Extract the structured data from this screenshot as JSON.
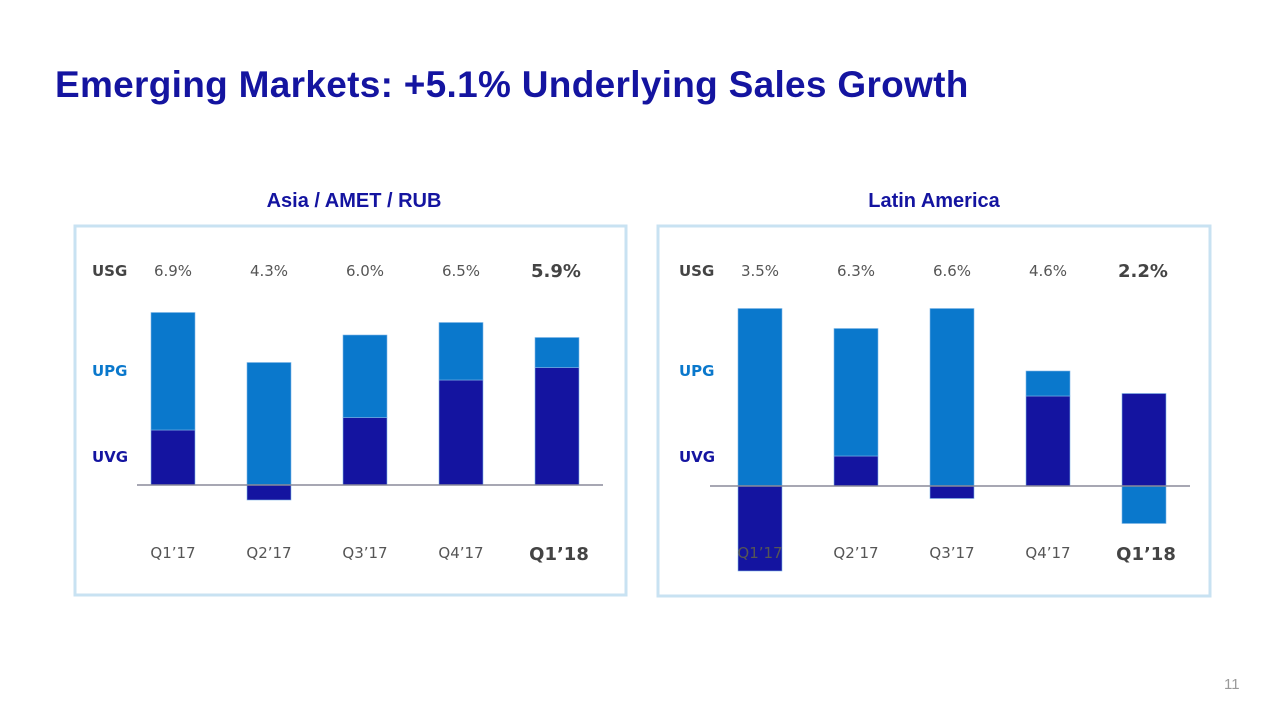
{
  "title": "Emerging Markets: +5.1% Underlying Sales Growth",
  "page_number": "11",
  "colors": {
    "title": "#1414a0",
    "UPG": "#0a78cc",
    "UVG": "#1414a0",
    "USG_label": "#444444",
    "panel_border": "#c8e2f2"
  },
  "chart_data": [
    {
      "type": "bar",
      "stacked": true,
      "title": "Asia / AMET / RUB",
      "row_labels": {
        "usg": "USG",
        "upg": "UPG",
        "uvg": "UVG"
      },
      "categories": [
        "Q1’17",
        "Q2’17",
        "Q3’17",
        "Q4’17",
        "Q1’18"
      ],
      "usg": [
        "6.9%",
        "4.3%",
        "6.0%",
        "6.5%",
        "5.9%"
      ],
      "series": [
        {
          "name": "UVG",
          "values": [
            2.2,
            -0.6,
            2.7,
            4.2,
            4.7
          ]
        },
        {
          "name": "UPG",
          "values": [
            4.7,
            4.9,
            3.3,
            2.3,
            1.2
          ]
        }
      ],
      "highlight_index": 4
    },
    {
      "type": "bar",
      "stacked": true,
      "title": "Latin America",
      "row_labels": {
        "usg": "USG",
        "upg": "UPG",
        "uvg": "UVG"
      },
      "categories": [
        "Q1’17",
        "Q2’17",
        "Q3’17",
        "Q4’17",
        "Q1’18"
      ],
      "usg": [
        "3.5%",
        "6.3%",
        "6.6%",
        "4.6%",
        "2.2%"
      ],
      "series": [
        {
          "name": "UVG",
          "values": [
            -3.4,
            1.2,
            -0.5,
            3.6,
            3.7
          ]
        },
        {
          "name": "UPG",
          "values": [
            7.1,
            5.1,
            7.1,
            1.0,
            -1.5
          ]
        }
      ],
      "highlight_index": 4
    }
  ]
}
